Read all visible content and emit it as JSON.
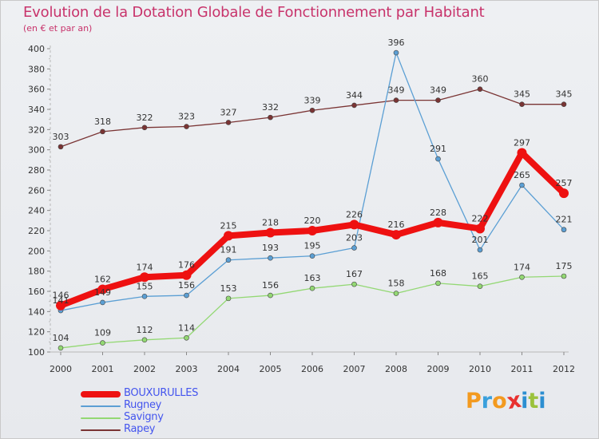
{
  "title": "Evolution de la Dotation Globale de Fonctionnement par Habitant",
  "subtitle": "(en € et par an)",
  "logo": {
    "text": "Proxiti",
    "letters": [
      "P",
      "r",
      "o",
      "x",
      "i",
      "t",
      "i"
    ],
    "colors": [
      "#f39a1f",
      "#3aa0dc",
      "#f39a1f",
      "#e8312f",
      "#2d8fd1",
      "#9bc23c",
      "#2d8fd1"
    ]
  },
  "chart_data": {
    "type": "line",
    "title": "Evolution de la Dotation Globale de Fonctionnement par Habitant",
    "subtitle": "(en € et par an)",
    "xlabel": "",
    "ylabel": "",
    "ylim": [
      100,
      400
    ],
    "yticks": [
      100,
      120,
      140,
      160,
      180,
      200,
      220,
      240,
      260,
      280,
      300,
      320,
      340,
      360,
      380,
      400
    ],
    "x": [
      "2000",
      "2001",
      "2002",
      "2003",
      "2004",
      "2005",
      "2006",
      "2007",
      "2008",
      "2009",
      "2010",
      "2011",
      "2012"
    ],
    "grid": false,
    "legend_position": "bottom-left",
    "series": [
      {
        "name": "Rapey",
        "color": "#7a3434",
        "labelColor": "#333333",
        "lineColor": "#7a3434",
        "width": 1.3,
        "values": [
          303,
          318,
          322,
          323,
          327,
          332,
          339,
          344,
          349,
          349,
          360,
          345,
          345
        ]
      },
      {
        "name": "Savigny",
        "color": "#93d873",
        "labelColor": "#333333",
        "lineColor": "#93d873",
        "width": 1.3,
        "values": [
          104,
          109,
          112,
          114,
          153,
          156,
          163,
          167,
          158,
          168,
          165,
          174,
          175
        ]
      },
      {
        "name": "Rugney",
        "color": "#5b9fd4",
        "labelColor": "#333333",
        "lineColor": "#5b9fd4",
        "width": 1.3,
        "values": [
          141,
          149,
          155,
          156,
          191,
          193,
          195,
          203,
          396,
          291,
          201,
          265,
          221
        ]
      },
      {
        "name": "BOUXURULLES",
        "color": "#ee1111",
        "labelColor": "#333333",
        "lineColor": "#ee1111",
        "width": 8,
        "values": [
          146,
          162,
          174,
          176,
          215,
          218,
          220,
          226,
          216,
          228,
          222,
          297,
          257
        ]
      }
    ],
    "legend": [
      {
        "name": "BOUXURULLES",
        "color": "#ee1111",
        "textColor": "#4455ee"
      },
      {
        "name": "Rugney",
        "color": "#5b9fd4",
        "textColor": "#4455ee"
      },
      {
        "name": "Savigny",
        "color": "#93d873",
        "textColor": "#4455ee"
      },
      {
        "name": "Rapey",
        "color": "#7a3434",
        "textColor": "#4455ee"
      }
    ]
  }
}
